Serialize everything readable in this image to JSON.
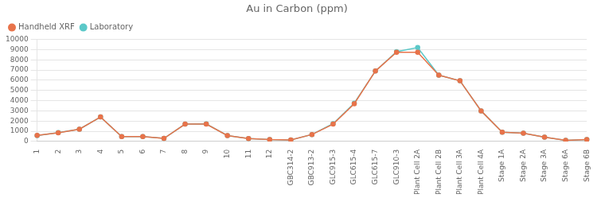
{
  "chart_data": {
    "type": "line",
    "title": "Au in Carbon (ppm)",
    "categories": [
      "1",
      "2",
      "3",
      "4",
      "5",
      "6",
      "7",
      "8",
      "9",
      "10",
      "11",
      "12",
      "GBC314-2",
      "GBC913-2",
      "GLC915-3",
      "GLC615-4",
      "GLC615-7",
      "GLC910-3",
      "Plant Cell 2A",
      "Plant Cell 2B",
      "Plant Cell 3A",
      "Plant Cell 4A",
      "Stage 1A",
      "Stage 2A",
      "Stage 3A",
      "Stage 6A",
      "Stage 6B"
    ],
    "series": [
      {
        "name": "Handheld XRF",
        "color": "#E8734A",
        "marker": "circle",
        "values": [
          600,
          850,
          1200,
          2400,
          480,
          480,
          300,
          1700,
          1700,
          580,
          280,
          180,
          150,
          680,
          1700,
          3700,
          6900,
          8750,
          8750,
          6500,
          5950,
          3000,
          900,
          800,
          420,
          110,
          180
        ]
      },
      {
        "name": "Laboratory",
        "color": "#5BC8C8",
        "marker": "circle",
        "values": [
          580,
          860,
          1200,
          2400,
          480,
          480,
          300,
          1700,
          1720,
          580,
          280,
          180,
          150,
          680,
          1750,
          3750,
          6900,
          8800,
          9200,
          6500,
          5950,
          3000,
          900,
          800,
          420,
          110,
          180
        ]
      }
    ],
    "ylim": [
      0,
      10000
    ],
    "yticks": [
      0,
      1000,
      2000,
      3000,
      4000,
      5000,
      6000,
      7000,
      8000,
      9000,
      10000
    ],
    "grid": true,
    "legend": "upper left"
  }
}
